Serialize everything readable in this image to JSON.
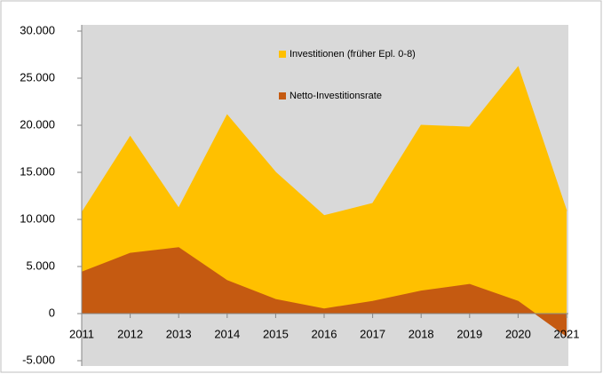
{
  "chart_data": {
    "type": "area",
    "categories": [
      "2011",
      "2012",
      "2013",
      "2014",
      "2015",
      "2016",
      "2017",
      "2018",
      "2019",
      "2020",
      "2021"
    ],
    "series": [
      {
        "name": "Investitionen (früher Epl. 0-8)",
        "color": "#ffc000",
        "values": [
          10700,
          18800,
          11200,
          21100,
          15000,
          10400,
          11700,
          20000,
          19800,
          26200,
          10900
        ]
      },
      {
        "name": "Netto-Investitionsrate",
        "color": "#c55a11",
        "values": [
          4400,
          6400,
          7000,
          3500,
          1500,
          500,
          1300,
          2400,
          3100,
          1300,
          -2400
        ]
      }
    ],
    "ylim": [
      -5000,
      30000
    ],
    "yticks": [
      {
        "value": -5000,
        "label": "-5.000"
      },
      0,
      {
        "value": 5000,
        "label": "5.000"
      },
      {
        "value": 10000,
        "label": "10.000"
      },
      {
        "value": 15000,
        "label": "15.000"
      },
      {
        "value": 20000,
        "label": "20.000"
      },
      {
        "value": 25000,
        "label": "25.000"
      },
      {
        "value": 30000,
        "label": "30.000"
      }
    ],
    "grid": false,
    "plot_background": "#d9d9d9"
  }
}
